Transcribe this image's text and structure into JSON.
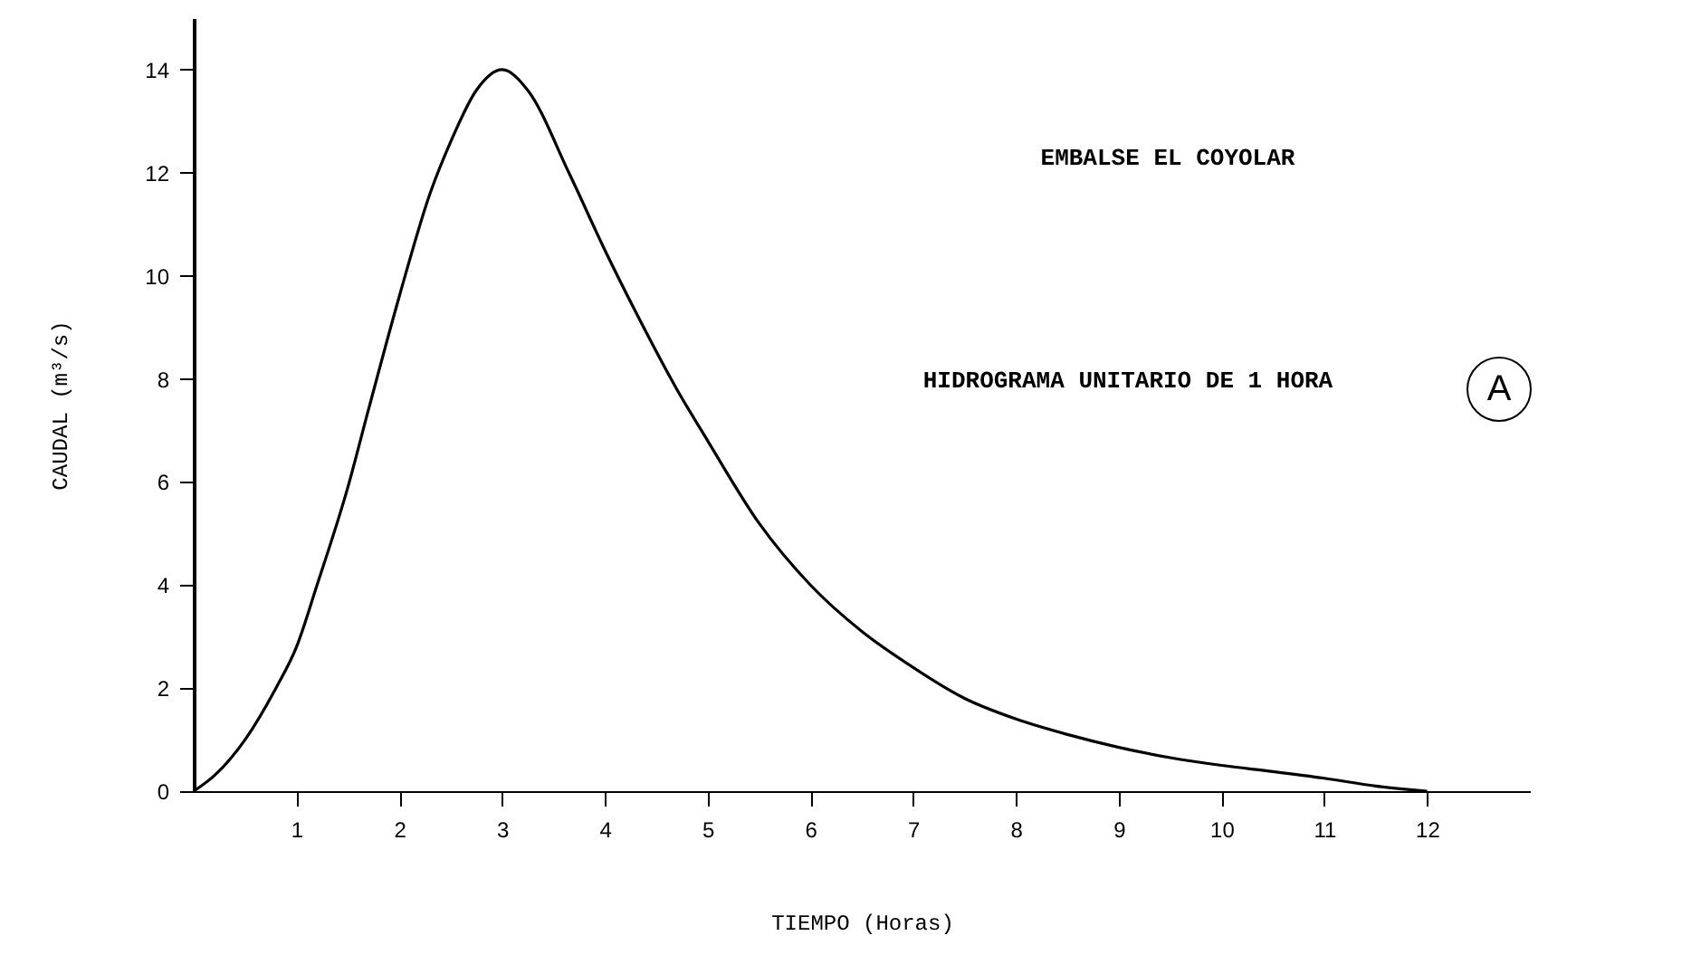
{
  "chart_data": {
    "type": "line",
    "title": "EMBALSE EL COYOLAR",
    "subtitle": "HIDROGRAMA UNITARIO DE 1 HORA",
    "xlabel": "TIEMPO (Horas)",
    "ylabel": "CAUDAL (m³/s)",
    "annotations": [
      "A"
    ],
    "x": [
      0,
      0.2,
      0.5,
      0.8,
      1,
      1.2,
      1.5,
      1.7,
      2,
      2.3,
      2.5,
      2.75,
      3,
      3.25,
      3.65,
      4,
      4.3,
      4.7,
      5,
      5.5,
      6,
      6.5,
      7,
      7.5,
      8,
      8.5,
      9,
      9.5,
      10,
      10.5,
      11,
      11.5,
      12
    ],
    "series": [
      {
        "color": "#000000",
        "values": [
          0,
          0.3,
          1,
          2,
          2.8,
          4,
          5.9,
          7.4,
          9.6,
          11.6,
          12.6,
          13.6,
          14,
          13.6,
          12,
          10.5,
          9.3,
          7.8,
          6.8,
          5.2,
          4,
          3.1,
          2.4,
          1.8,
          1.4,
          1.1,
          0.85,
          0.65,
          0.5,
          0.38,
          0.25,
          0.1,
          0
        ]
      }
    ],
    "xlim": [
      0,
      13
    ],
    "ylim": [
      0,
      15
    ],
    "xticks": [
      1,
      2,
      3,
      4,
      5,
      6,
      7,
      8,
      9,
      10,
      11,
      12
    ],
    "yticks": [
      0,
      2,
      4,
      6,
      8,
      10,
      12,
      14
    ],
    "grid": false,
    "marker": "none",
    "line_style": "solid"
  }
}
